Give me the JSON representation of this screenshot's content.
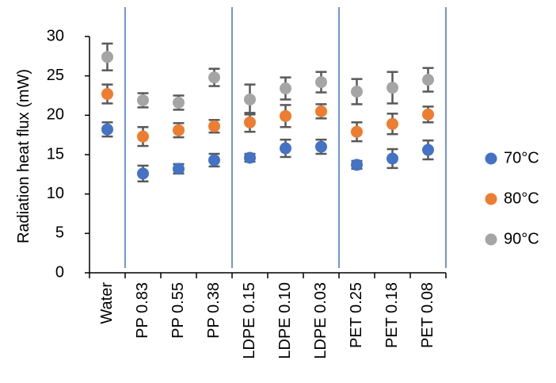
{
  "chart_data": {
    "type": "scatter",
    "title": "",
    "xlabel": "",
    "ylabel": "Radiation heat flux (mW)",
    "ylim": [
      0,
      30
    ],
    "yticks": [
      0,
      5,
      10,
      15,
      20,
      25,
      30
    ],
    "grid": false,
    "legend_position": "right",
    "categories": [
      "Water",
      "PP  0.83",
      "PP  0.55",
      "PP  0.38",
      "LDPE 0.15",
      "LDPE 0.10",
      "LDPE 0.03",
      "PET 0.25",
      "PET 0.18",
      "PET 0.08"
    ],
    "group_separators_after": [
      0,
      3,
      6,
      9
    ],
    "series": [
      {
        "name": "70°C",
        "color": "#4472C4",
        "values": [
          18.2,
          12.6,
          13.2,
          14.3,
          14.6,
          15.8,
          16.0,
          13.7,
          14.5,
          15.6
        ],
        "errors": [
          0.9,
          1.0,
          0.6,
          0.8,
          0.5,
          1.1,
          0.9,
          0.5,
          1.2,
          1.2
        ]
      },
      {
        "name": "80°C",
        "color": "#ED7D31",
        "values": [
          22.7,
          17.3,
          18.1,
          18.6,
          19.1,
          19.9,
          20.5,
          17.9,
          18.9,
          20.1
        ],
        "errors": [
          1.2,
          1.2,
          0.9,
          0.8,
          1.2,
          1.4,
          0.9,
          1.2,
          1.3,
          1.0
        ]
      },
      {
        "name": "90°C",
        "color": "#A5A5A5",
        "values": [
          27.4,
          21.9,
          21.6,
          24.8,
          22.0,
          23.4,
          24.2,
          23.0,
          23.5,
          24.5
        ],
        "errors": [
          1.7,
          0.9,
          0.9,
          1.1,
          1.9,
          1.4,
          1.3,
          1.6,
          2.0,
          1.5
        ]
      }
    ]
  }
}
